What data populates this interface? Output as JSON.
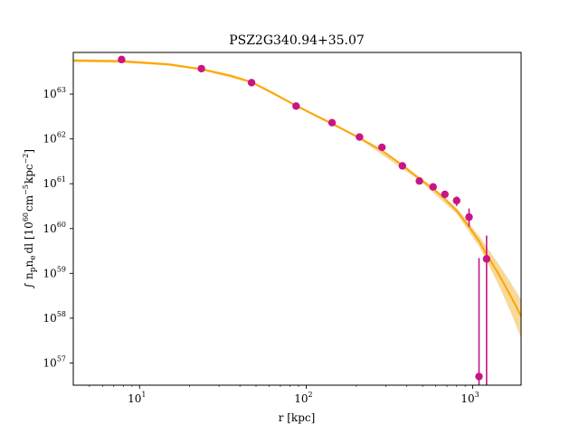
{
  "chart_data": {
    "type": "scatter",
    "title": "PSZ2G340.94+35.07",
    "xlabel": "r [kpc]",
    "ylabel": "∫ n_p n_e dl [10^60 cm^-5 kpc^-2]",
    "ylabel_parts": {
      "prefix": "∫ n",
      "sub_p": "p",
      "mid": "n",
      "sub_e": "e",
      "tail": "dl [10",
      "exp_60": "60",
      "unit_cm": "cm",
      "exp_cm": "−5",
      "unit_kpc": "kpc",
      "exp_kpc": "−2",
      "close": "]"
    },
    "x_scale": "log",
    "y_scale": "log",
    "xlim": [
      4,
      1950
    ],
    "ylim": [
      3.2e+56,
      8.5e+63
    ],
    "grid": false,
    "x_ticks": [
      {
        "value": 10,
        "label_base": "10",
        "label_exp": "1"
      },
      {
        "value": 100,
        "label_base": "10",
        "label_exp": "2"
      },
      {
        "value": 1000,
        "label_base": "10",
        "label_exp": "3"
      }
    ],
    "y_ticks": [
      {
        "value": 1e+57,
        "label_base": "10",
        "label_exp": "57"
      },
      {
        "value": 1e+58,
        "label_base": "10",
        "label_exp": "58"
      },
      {
        "value": 1e+59,
        "label_base": "10",
        "label_exp": "59"
      },
      {
        "value": 1e+60,
        "label_base": "10",
        "label_exp": "60"
      },
      {
        "value": 1e+61,
        "label_base": "10",
        "label_exp": "61"
      },
      {
        "value": 1e+62,
        "label_base": "10",
        "label_exp": "62"
      },
      {
        "value": 1e+63,
        "label_base": "10",
        "label_exp": "63"
      }
    ],
    "points": [
      {
        "x": 7.8,
        "y": 5.9e+63
      },
      {
        "x": 23.5,
        "y": 3.7e+63
      },
      {
        "x": 47,
        "y": 1.8e+63
      },
      {
        "x": 87,
        "y": 5.4e+62
      },
      {
        "x": 143,
        "y": 2.3e+62
      },
      {
        "x": 209,
        "y": 1.1e+62
      },
      {
        "x": 285,
        "y": 6.5e+61
      },
      {
        "x": 378,
        "y": 2.5e+61
      },
      {
        "x": 478,
        "y": 1.15e+61
      },
      {
        "x": 578,
        "y": 8.5e+60
      },
      {
        "x": 680,
        "y": 5.8e+60
      },
      {
        "x": 800,
        "y": 4.2e+60,
        "ylo": 3.2e+60,
        "yhi": 5.2e+60
      },
      {
        "x": 950,
        "y": 1.8e+60,
        "ylo": 1.1e+60,
        "yhi": 2.8e+60
      },
      {
        "x": 1090,
        "y": 5e+56,
        "ylo": 3.2e+56,
        "yhi": 2.2e+59
      },
      {
        "x": 1210,
        "y": 2.1e+59,
        "ylo": 3.2e+56,
        "yhi": 7e+59
      }
    ],
    "model_curve": [
      {
        "x": 4,
        "y": 5.6e+63
      },
      {
        "x": 7.8,
        "y": 5.4e+63
      },
      {
        "x": 15,
        "y": 4.6e+63
      },
      {
        "x": 23.5,
        "y": 3.6e+63
      },
      {
        "x": 35,
        "y": 2.6e+63
      },
      {
        "x": 47,
        "y": 1.85e+63
      },
      {
        "x": 65,
        "y": 1e+63
      },
      {
        "x": 87,
        "y": 5.5e+62
      },
      {
        "x": 143,
        "y": 2.2e+62
      },
      {
        "x": 209,
        "y": 1.05e+62
      },
      {
        "x": 285,
        "y": 5.5e+61
      },
      {
        "x": 378,
        "y": 2.6e+61
      },
      {
        "x": 478,
        "y": 1.3e+61
      },
      {
        "x": 578,
        "y": 7.8e+60
      },
      {
        "x": 680,
        "y": 4.6e+60
      },
      {
        "x": 800,
        "y": 2.5e+60
      },
      {
        "x": 950,
        "y": 1.1e+60
      },
      {
        "x": 1100,
        "y": 5e+59
      },
      {
        "x": 1210,
        "y": 2.6e+59
      },
      {
        "x": 1400,
        "y": 1.1e+59
      },
      {
        "x": 1600,
        "y": 4.5e+58
      },
      {
        "x": 1800,
        "y": 2e+58
      },
      {
        "x": 1950,
        "y": 1.1e+58
      }
    ],
    "band_upper": [
      {
        "x": 4,
        "y": 6e+63
      },
      {
        "x": 7.8,
        "y": 5.8e+63
      },
      {
        "x": 15,
        "y": 4.9e+63
      },
      {
        "x": 23.5,
        "y": 3.8e+63
      },
      {
        "x": 47,
        "y": 1.95e+63
      },
      {
        "x": 87,
        "y": 5.8e+62
      },
      {
        "x": 209,
        "y": 1.12e+62
      },
      {
        "x": 478,
        "y": 1.42e+61
      },
      {
        "x": 800,
        "y": 2.9e+60
      },
      {
        "x": 1100,
        "y": 6.6e+59
      },
      {
        "x": 1400,
        "y": 1.8e+59
      },
      {
        "x": 1700,
        "y": 6e+58
      },
      {
        "x": 1950,
        "y": 2.6e+58
      }
    ],
    "band_lower": [
      {
        "x": 4,
        "y": 5.2e+63
      },
      {
        "x": 7.8,
        "y": 5e+63
      },
      {
        "x": 15,
        "y": 4.3e+63
      },
      {
        "x": 23.5,
        "y": 3.4e+63
      },
      {
        "x": 47,
        "y": 1.75e+63
      },
      {
        "x": 87,
        "y": 5.2e+62
      },
      {
        "x": 209,
        "y": 9.9e+61
      },
      {
        "x": 478,
        "y": 1.18e+61
      },
      {
        "x": 800,
        "y": 2.15e+60
      },
      {
        "x": 1100,
        "y": 3.8e+59
      },
      {
        "x": 1400,
        "y": 6.5e+58
      },
      {
        "x": 1700,
        "y": 1.3e+58
      },
      {
        "x": 1950,
        "y": 3.5e+57
      }
    ],
    "colors": {
      "points": "#c71585",
      "curve": "#ffa500",
      "band": "#f5d28a"
    }
  }
}
